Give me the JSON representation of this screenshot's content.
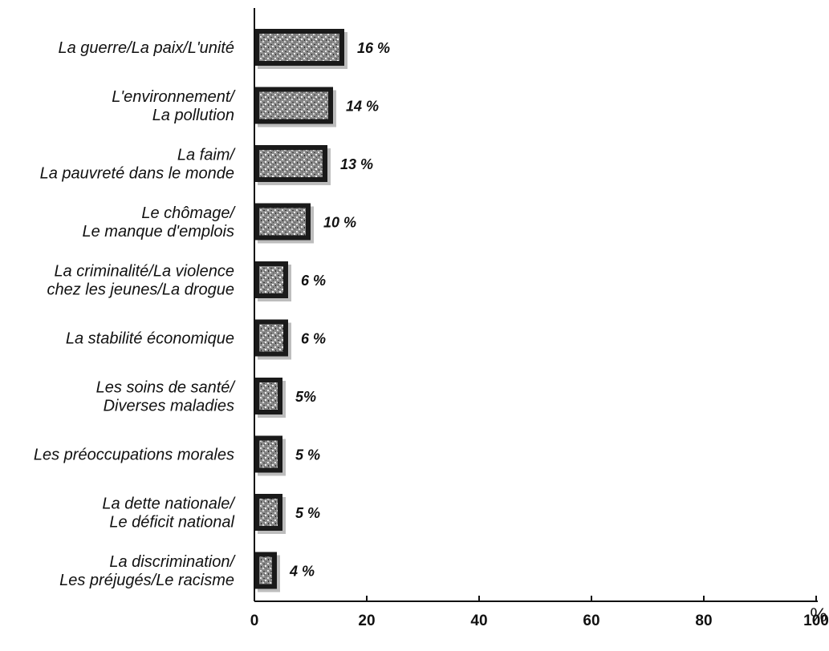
{
  "chart_data": {
    "type": "bar",
    "orientation": "horizontal",
    "categories": [
      [
        "La guerre/La paix/L'unité"
      ],
      [
        "L'environnement/",
        "La pollution"
      ],
      [
        "La faim/",
        "La pauvreté dans le monde"
      ],
      [
        "Le chômage/",
        "Le manque d'emplois"
      ],
      [
        "La criminalité/La violence",
        "chez les jeunes/La drogue"
      ],
      [
        "La stabilité économique"
      ],
      [
        "Les soins de santé/",
        "Diverses maladies"
      ],
      [
        "Les préoccupations morales"
      ],
      [
        "La dette nationale/",
        "Le déficit national"
      ],
      [
        "La discrimination/",
        "Les préjugés/Le racisme"
      ]
    ],
    "values": [
      16,
      14,
      13,
      10,
      6,
      6,
      5,
      5,
      5,
      4
    ],
    "value_labels": [
      "16 %",
      "14 %",
      "13 %",
      "10 %",
      "6 %",
      "6 %",
      "5%",
      "5 %",
      "5 %",
      "4 %"
    ],
    "xticks": [
      "0",
      "20",
      "40",
      "60",
      "80",
      "100"
    ],
    "xlim": [
      0,
      100
    ],
    "unit_label": "%",
    "grid": false,
    "legend": "none",
    "colors": {
      "bar_fill": "#1a1a1a",
      "bar_speckle": "#cfcfcf",
      "bar_shadow": "#bdbdbd",
      "axis": "#111111",
      "text": "#111111",
      "background": "#ffffff"
    }
  }
}
